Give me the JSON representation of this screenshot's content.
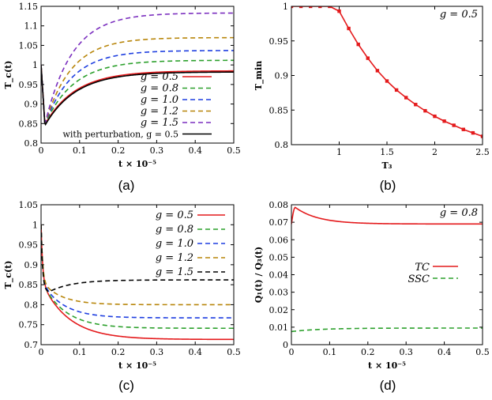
{
  "chart_data": [
    {
      "id": "a",
      "panel_label": "(a)",
      "type": "line",
      "xlabel": "t × 10⁻⁵",
      "ylabel": "T_c(t)",
      "xlim": [
        0,
        0.5
      ],
      "ylim": [
        0.8,
        1.15
      ],
      "xticks": [
        0,
        0.1,
        0.2,
        0.3,
        0.4,
        0.5
      ],
      "xtick_labels": [
        "0",
        "0.1",
        "0.2",
        "0.3",
        "0.4",
        "0.5"
      ],
      "yticks": [
        0.8,
        0.85,
        0.9,
        0.95,
        1.0,
        1.05,
        1.1,
        1.15
      ],
      "ytick_labels": [
        "0.8",
        "0.85",
        "0.9",
        "0.95",
        "1",
        "1.05",
        "1.1",
        "1.15"
      ],
      "legend_position": "bottom-right",
      "series": [
        {
          "name": "g = 0.5",
          "label_text": "g = 0.5",
          "color": "#e41a1c",
          "dash": "solid",
          "start": 1.0,
          "dip_t": 0.01,
          "dip_val": 0.848,
          "final": 0.985,
          "tau": 0.08
        },
        {
          "name": "g = 0.8",
          "label_text": "g = 0.8",
          "color": "#2ca02c",
          "dash": "dashed",
          "start": 1.0,
          "dip_t": 0.01,
          "dip_val": 0.848,
          "final": 1.012,
          "tau": 0.075
        },
        {
          "name": "g = 1.0",
          "label_text": "g = 1.0",
          "color": "#1f3fe0",
          "dash": "dashed",
          "start": 1.0,
          "dip_t": 0.01,
          "dip_val": 0.848,
          "final": 1.037,
          "tau": 0.07
        },
        {
          "name": "g = 1.2",
          "label_text": "g = 1.2",
          "color": "#b8860b",
          "dash": "dashed",
          "start": 1.0,
          "dip_t": 0.01,
          "dip_val": 0.848,
          "final": 1.07,
          "tau": 0.068
        },
        {
          "name": "g = 1.5",
          "label_text": "g = 1.5",
          "color": "#7b2fbf",
          "dash": "dashed",
          "start": 1.0,
          "dip_t": 0.01,
          "dip_val": 0.848,
          "final": 1.133,
          "tau": 0.07
        },
        {
          "name": "with perturbation, g = 0.5",
          "label_text": "with perturbation, g = 0.5",
          "color": "#000000",
          "dash": "solid",
          "start": 1.0,
          "dip_t": 0.01,
          "dip_val": 0.845,
          "final": 0.982,
          "tau": 0.08
        }
      ]
    },
    {
      "id": "b",
      "panel_label": "(b)",
      "type": "line",
      "xlabel": "T₃",
      "ylabel": "T_min",
      "annotation": "g = 0.5",
      "xlim": [
        0.5,
        2.5
      ],
      "ylim": [
        0.8,
        1.0
      ],
      "xticks": [
        1,
        1.5,
        2,
        2.5
      ],
      "xtick_labels": [
        "1",
        "1.5",
        "2",
        "2.5"
      ],
      "yticks": [
        0.8,
        0.85,
        0.9,
        0.95,
        1.0
      ],
      "ytick_labels": [
        "0.8",
        "0.85",
        "0.9",
        "0.95",
        "1"
      ],
      "series": [
        {
          "name": "T_min",
          "color": "#e41a1c",
          "markers": true,
          "x": [
            0.5,
            0.6,
            0.7,
            0.8,
            0.9,
            1.0,
            1.1,
            1.2,
            1.3,
            1.4,
            1.5,
            1.6,
            1.7,
            1.8,
            1.9,
            2.0,
            2.1,
            2.2,
            2.3,
            2.4,
            2.5
          ],
          "y": [
            1.0,
            1.0,
            1.0,
            1.0,
            1.0,
            0.993,
            0.968,
            0.945,
            0.925,
            0.907,
            0.892,
            0.879,
            0.868,
            0.858,
            0.849,
            0.841,
            0.834,
            0.828,
            0.822,
            0.817,
            0.812
          ]
        }
      ]
    },
    {
      "id": "c",
      "panel_label": "(c)",
      "type": "line",
      "xlabel": "t × 10⁻⁵",
      "ylabel": "T_c(t)",
      "xlim": [
        0,
        0.5
      ],
      "ylim": [
        0.7,
        1.05
      ],
      "xticks": [
        0,
        0.1,
        0.2,
        0.3,
        0.4,
        0.5
      ],
      "xtick_labels": [
        "0",
        "0.1",
        "0.2",
        "0.3",
        "0.4",
        "0.5"
      ],
      "yticks": [
        0.7,
        0.75,
        0.8,
        0.85,
        0.9,
        0.95,
        1.0,
        1.05
      ],
      "ytick_labels": [
        "0.7",
        "0.75",
        "0.8",
        "0.85",
        "0.9",
        "0.95",
        "1",
        "1.05"
      ],
      "legend_position": "top-right",
      "series": [
        {
          "name": "g = 0.5",
          "label_text": "g = 0.5",
          "color": "#e41a1c",
          "dash": "solid",
          "start": 1.0,
          "final": 0.713,
          "tau": 0.07,
          "fast": 0.004
        },
        {
          "name": "g = 0.8",
          "label_text": "g = 0.8",
          "color": "#2ca02c",
          "dash": "dashed",
          "start": 1.0,
          "final": 0.741,
          "tau": 0.06,
          "fast": 0.004
        },
        {
          "name": "g = 1.0",
          "label_text": "g = 1.0",
          "color": "#1f3fe0",
          "dash": "dashed",
          "start": 1.0,
          "final": 0.767,
          "tau": 0.055,
          "fast": 0.004
        },
        {
          "name": "g = 1.2",
          "label_text": "g = 1.2",
          "color": "#b8860b",
          "dash": "dashed",
          "start": 1.0,
          "final": 0.8,
          "tau": 0.05,
          "fast": 0.004
        },
        {
          "name": "g = 1.5",
          "label_text": "g = 1.5",
          "color": "#000000",
          "dash": "dashed",
          "start": 1.0,
          "dip_t": 0.02,
          "dip_val": 0.832,
          "final": 0.862,
          "tau": 0.06
        }
      ]
    },
    {
      "id": "d",
      "panel_label": "(d)",
      "type": "line",
      "xlabel": "t × 10⁻⁵",
      "ylabel": "Q₁(t) / Q₃(t)",
      "annotation": "g = 0.8",
      "xlim": [
        0,
        0.5
      ],
      "ylim": [
        0,
        0.08
      ],
      "xticks": [
        0,
        0.1,
        0.2,
        0.3,
        0.4,
        0.5
      ],
      "xtick_labels": [
        "0",
        "0.1",
        "0.2",
        "0.3",
        "0.4",
        "0.5"
      ],
      "yticks": [
        0,
        0.01,
        0.02,
        0.03,
        0.04,
        0.05,
        0.06,
        0.07,
        0.08
      ],
      "ytick_labels": [
        "0",
        "0.01",
        "0.02",
        "0.03",
        "0.04",
        "0.05",
        "0.06",
        "0.07",
        "0.08"
      ],
      "legend_position": "center-right",
      "series": [
        {
          "name": "TC",
          "label_text": "TC",
          "color": "#e41a1c",
          "dash": "solid",
          "start": 0.069,
          "peak_t": 0.01,
          "peak_val": 0.0785,
          "final": 0.069,
          "tau": 0.06
        },
        {
          "name": "SSC",
          "label_text": "SSC",
          "color": "#2ca02c",
          "dash": "dashed",
          "start": 0.0075,
          "final": 0.0095,
          "tau": 0.08
        }
      ]
    }
  ]
}
